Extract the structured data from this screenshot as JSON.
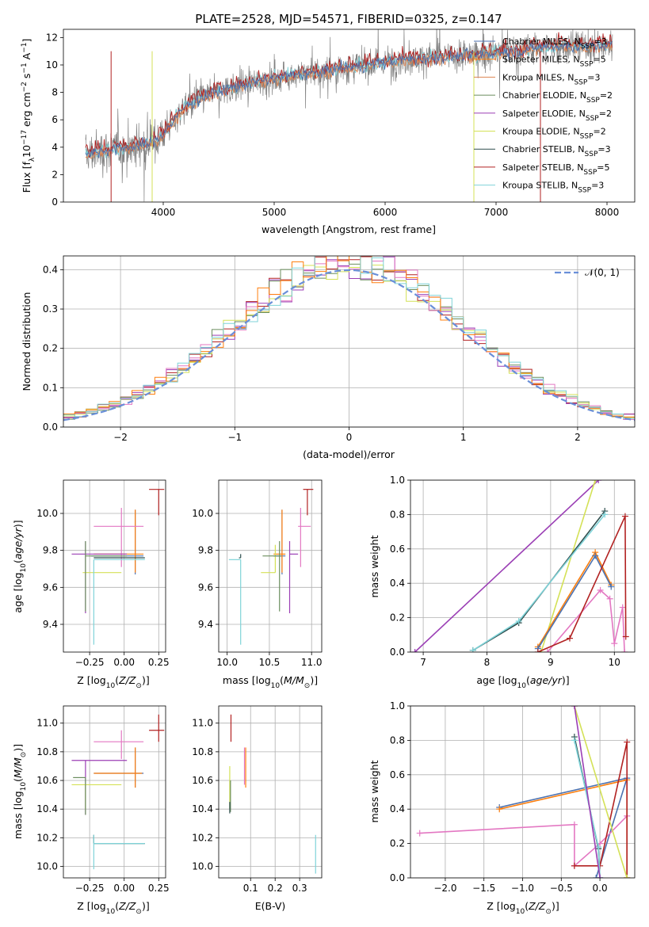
{
  "title": "PLATE=2528, MJD=54571, FIBERID=0325, z=0.147",
  "colors": {
    "Chabrier MILES": "#4c72b0",
    "Salpeter MILES": "#ff7f0e",
    "Kroupa MILES": "#dd8452",
    "Chabrier ELODIE": "#6b8e5e",
    "Salpeter ELODIE": "#9b3fb5",
    "Kroupa ELODIE": "#d4e157",
    "Chabrier STELIB": "#2f4f4f",
    "Salpeter STELIB": "#b22222",
    "Kroupa STELIB": "#7fd3d8",
    "normal": "#6a8fd8",
    "pink": "#e377c2",
    "data": "#808080"
  },
  "chart_data": [
    {
      "type": "line",
      "title": "PLATE=2528, MJD=54571, FIBERID=0325, z=0.147",
      "xlabel": "wavelength [Angstrom, rest frame]",
      "ylabel": "Flux [f_λ 10^-17 erg cm^-2 s^-1 A^-1]",
      "xlim": [
        3100,
        8250
      ],
      "ylim": [
        0,
        12.6
      ],
      "xticks": [
        4000,
        5000,
        6000,
        7000,
        8000
      ],
      "yticks": [
        0,
        2,
        4,
        6,
        8,
        10,
        12
      ],
      "legend": [
        {
          "label": "Chabrier MILES, N_SSP=3",
          "color": "#4c72b0"
        },
        {
          "label": "Salpeter MILES, N_SSP=5",
          "color": "#ff7f0e"
        },
        {
          "label": "Kroupa MILES, N_SSP=3",
          "color": "#dd8452"
        },
        {
          "label": "Chabrier ELODIE, N_SSP=2",
          "color": "#6b8e5e"
        },
        {
          "label": "Salpeter ELODIE, N_SSP=2",
          "color": "#9b3fb5"
        },
        {
          "label": "Kroupa ELODIE, N_SSP=2",
          "color": "#d4e157"
        },
        {
          "label": "Chabrier STELIB, N_SSP=3",
          "color": "#2f4f4f"
        },
        {
          "label": "Salpeter STELIB, N_SSP=5",
          "color": "#b22222"
        },
        {
          "label": "Kroupa STELIB, N_SSP=3",
          "color": "#7fd3d8"
        }
      ],
      "legend_position": "top-right",
      "continuum_nodes": {
        "x": [
          3300,
          3500,
          3700,
          3900,
          4000,
          4200,
          4400,
          4600,
          4800,
          5000,
          5200,
          5400,
          5600,
          5800,
          6000,
          6200,
          6400,
          6600,
          6800,
          7000,
          7200,
          7400,
          7600,
          7800,
          8050
        ],
        "y": [
          3.5,
          3.8,
          4.0,
          4.3,
          5.0,
          7.0,
          7.8,
          8.3,
          8.7,
          9.0,
          9.3,
          9.4,
          9.8,
          9.9,
          10.2,
          10.4,
          10.5,
          10.6,
          10.7,
          10.9,
          11.0,
          11.3,
          11.4,
          11.3,
          11.5
        ]
      }
    },
    {
      "type": "histogram",
      "xlabel": "(data-model)/error",
      "ylabel": "Normed distribution",
      "xlim": [
        -2.5,
        2.5
      ],
      "ylim": [
        0,
        0.435
      ],
      "xticks": [
        -2,
        -1,
        0,
        1,
        2
      ],
      "yticks": [
        0.0,
        0.1,
        0.2,
        0.3,
        0.4
      ],
      "legend": [
        {
          "label": "𝒩(0, 1)",
          "color": "#6a8fd8",
          "style": "dashed"
        }
      ],
      "legend_position": "top-right",
      "bin_width": 0.1,
      "reference_curve": "standard normal pdf"
    },
    {
      "type": "scatter",
      "xlabel": "Z [log10(Z/Z⊙)]",
      "ylabel": "age  [log10(age/yr)]",
      "xlim": [
        -0.44,
        0.3
      ],
      "ylim": [
        9.25,
        10.18
      ],
      "xticks": [
        -0.25,
        0.0,
        0.25
      ],
      "yticks": [
        9.4,
        9.6,
        9.8,
        10.0
      ],
      "points": [
        {
          "c": "#4c72b0",
          "x": 0.08,
          "y": 9.77,
          "xerr": [
            0.32,
            0.06
          ],
          "yerr": [
            0.1,
            0.25
          ]
        },
        {
          "c": "#ff7f0e",
          "x": 0.08,
          "y": 9.78,
          "xerr": [
            0.3,
            0.06
          ],
          "yerr": [
            0.1,
            0.24
          ]
        },
        {
          "c": "#b22222",
          "x": 0.25,
          "y": 10.13,
          "xerr": [
            0.07,
            0.04
          ],
          "yerr": [
            0.14,
            0.0
          ]
        },
        {
          "c": "#e377c2",
          "x": -0.02,
          "y": 9.93,
          "xerr": [
            0.2,
            0.16
          ],
          "yerr": [
            0.22,
            0.1
          ]
        },
        {
          "c": "#9b3fb5",
          "x": -0.28,
          "y": 9.78,
          "xerr": [
            0.1,
            0.3
          ],
          "yerr": [
            0.32,
            0.07
          ]
        },
        {
          "c": "#d4e157",
          "x": -0.02,
          "y": 9.68,
          "xerr": [
            0.28,
            0.0
          ],
          "yerr": [
            0.0,
            0.0
          ]
        },
        {
          "c": "#6b8e5e",
          "x": -0.28,
          "y": 9.77,
          "xerr": [
            0.0,
            0.3
          ],
          "yerr": [
            0.3,
            0.08
          ]
        },
        {
          "c": "#2f4f4f",
          "x": -0.22,
          "y": 9.76,
          "xerr": [
            0.0,
            0.37
          ],
          "yerr": [
            0.0,
            0.0
          ]
        },
        {
          "c": "#7fd3d8",
          "x": -0.22,
          "y": 9.75,
          "xerr": [
            0.0,
            0.37
          ],
          "yerr": [
            0.46,
            0.0
          ]
        }
      ]
    },
    {
      "type": "scatter",
      "xlabel": "mass [log10(M/M⊙)]",
      "ylabel": "",
      "xlim": [
        9.9,
        11.12
      ],
      "ylim": [
        9.25,
        10.18
      ],
      "xticks": [
        10.0,
        10.5,
        11.0
      ],
      "yticks": [
        9.4,
        9.6,
        9.8,
        10.0
      ],
      "points": [
        {
          "c": "#4c72b0",
          "x": 10.65,
          "y": 9.77,
          "xerr": [
            0.1,
            0.04
          ],
          "yerr": [
            0.1,
            0.25
          ]
        },
        {
          "c": "#ff7f0e",
          "x": 10.65,
          "y": 9.78,
          "xerr": [
            0.1,
            0.04
          ],
          "yerr": [
            0.1,
            0.24
          ]
        },
        {
          "c": "#b22222",
          "x": 10.95,
          "y": 10.13,
          "xerr": [
            0.05,
            0.07
          ],
          "yerr": [
            0.14,
            0.0
          ]
        },
        {
          "c": "#e377c2",
          "x": 10.87,
          "y": 9.93,
          "xerr": [
            0.03,
            0.12
          ],
          "yerr": [
            0.22,
            0.1
          ]
        },
        {
          "c": "#9b3fb5",
          "x": 10.74,
          "y": 9.78,
          "xerr": [
            0.0,
            0.1
          ],
          "yerr": [
            0.32,
            0.07
          ]
        },
        {
          "c": "#d4e157",
          "x": 10.57,
          "y": 9.68,
          "xerr": [
            0.17,
            0.0
          ],
          "yerr": [
            0.0,
            0.15
          ]
        },
        {
          "c": "#6b8e5e",
          "x": 10.62,
          "y": 9.77,
          "xerr": [
            0.2,
            0.02
          ],
          "yerr": [
            0.3,
            0.08
          ]
        },
        {
          "c": "#2f4f4f",
          "x": 10.16,
          "y": 9.76,
          "xerr": [
            0.02,
            0.0
          ],
          "yerr": [
            0.0,
            0.02
          ]
        },
        {
          "c": "#7fd3d8",
          "x": 10.16,
          "y": 9.75,
          "xerr": [
            0.14,
            0.0
          ],
          "yerr": [
            0.46,
            0.0
          ]
        }
      ]
    },
    {
      "type": "line",
      "xlabel": "age  [log10(age/yr)]",
      "ylabel": "mass weight",
      "xlim": [
        6.8,
        10.32
      ],
      "ylim": [
        0,
        1
      ],
      "xticks": [
        7,
        8,
        9,
        10
      ],
      "yticks": [
        0.0,
        0.2,
        0.4,
        0.6,
        0.8,
        1.0
      ],
      "series": [
        {
          "c": "#9b3fb5",
          "x": [
            6.87,
            9.75
          ],
          "y": [
            0.0,
            1.0
          ]
        },
        {
          "c": "#d4e157",
          "x": [
            8.85,
            9.7
          ],
          "y": [
            0.0,
            1.0
          ]
        },
        {
          "c": "#2f4f4f",
          "x": [
            7.78,
            8.5,
            9.85
          ],
          "y": [
            0.01,
            0.17,
            0.82
          ]
        },
        {
          "c": "#7fd3d8",
          "x": [
            7.78,
            8.5,
            9.85
          ],
          "y": [
            0.01,
            0.18,
            0.8
          ]
        },
        {
          "c": "#ff7f0e",
          "x": [
            8.8,
            9.7,
            9.95
          ],
          "y": [
            0.03,
            0.58,
            0.39
          ]
        },
        {
          "c": "#4c72b0",
          "x": [
            8.8,
            9.7,
            9.95
          ],
          "y": [
            0.02,
            0.56,
            0.38
          ]
        },
        {
          "c": "#e377c2",
          "x": [
            8.95,
            9.78,
            9.93,
            10.0,
            10.13,
            10.16
          ],
          "y": [
            0.0,
            0.36,
            0.31,
            0.05,
            0.26,
            0.0
          ]
        },
        {
          "c": "#b22222",
          "x": [
            8.8,
            9.3,
            10.17,
            10.18
          ],
          "y": [
            0.0,
            0.08,
            0.79,
            0.09
          ]
        }
      ]
    },
    {
      "type": "scatter",
      "xlabel": "Z [log10(Z/Z⊙)]",
      "ylabel": "mass [log10(M/M⊙)]",
      "xlim": [
        -0.44,
        0.3
      ],
      "ylim": [
        9.92,
        11.12
      ],
      "xticks": [
        -0.25,
        0.0,
        0.25
      ],
      "yticks": [
        10.0,
        10.2,
        10.4,
        10.6,
        10.8,
        11.0
      ],
      "points": [
        {
          "c": "#4c72b0",
          "x": 0.08,
          "y": 10.65,
          "xerr": [
            0.3,
            0.06
          ],
          "yerr": [
            0.1,
            0.18
          ]
        },
        {
          "c": "#ff7f0e",
          "x": 0.08,
          "y": 10.65,
          "xerr": [
            0.3,
            0.05
          ],
          "yerr": [
            0.1,
            0.18
          ]
        },
        {
          "c": "#b22222",
          "x": 0.25,
          "y": 10.95,
          "xerr": [
            0.07,
            0.04
          ],
          "yerr": [
            0.08,
            0.11
          ]
        },
        {
          "c": "#e377c2",
          "x": -0.02,
          "y": 10.87,
          "xerr": [
            0.2,
            0.16
          ],
          "yerr": [
            0.12,
            0.08
          ]
        },
        {
          "c": "#9b3fb5",
          "x": -0.28,
          "y": 10.74,
          "xerr": [
            0.1,
            0.3
          ],
          "yerr": [
            0.38,
            0.0
          ]
        },
        {
          "c": "#d4e157",
          "x": -0.28,
          "y": 10.57,
          "xerr": [
            0.1,
            0.26
          ],
          "yerr": [
            0.17,
            0.0
          ]
        },
        {
          "c": "#6b8e5e",
          "x": -0.28,
          "y": 10.62,
          "xerr": [
            0.09,
            0.0
          ],
          "yerr": [
            0.26,
            0.0
          ]
        },
        {
          "c": "#2f4f4f",
          "x": -0.22,
          "y": 10.16,
          "xerr": [
            0.0,
            0.37
          ],
          "yerr": [
            0.0,
            0.06
          ]
        },
        {
          "c": "#7fd3d8",
          "x": -0.22,
          "y": 10.16,
          "xerr": [
            0.0,
            0.37
          ],
          "yerr": [
            0.18,
            0.06
          ]
        }
      ]
    },
    {
      "type": "scatter",
      "xlabel": "E(B-V)",
      "ylabel": "",
      "xlim": [
        -0.03,
        0.39
      ],
      "ylim": [
        9.92,
        11.12
      ],
      "xticks": [
        0.1,
        0.2,
        0.3
      ],
      "yticks": [
        10.0,
        10.2,
        10.4,
        10.6,
        10.8,
        11.0
      ],
      "points": [
        {
          "c": "#b22222",
          "x": 0.02,
          "y": 10.95,
          "xerr": [
            0,
            0
          ],
          "yerr": [
            0.08,
            0.11
          ]
        },
        {
          "c": "#ff7f0e",
          "x": 0.08,
          "y": 10.65,
          "xerr": [
            0,
            0
          ],
          "yerr": [
            0.1,
            0.18
          ]
        },
        {
          "c": "#e377c2",
          "x": 0.075,
          "y": 10.65,
          "xerr": [
            0,
            0
          ],
          "yerr": [
            0.08,
            0.18
          ]
        },
        {
          "c": "#d4e157",
          "x": 0.015,
          "y": 10.55,
          "xerr": [
            0,
            0
          ],
          "yerr": [
            0.15,
            0.15
          ]
        },
        {
          "c": "#6b8e5e",
          "x": 0.018,
          "y": 10.5,
          "xerr": [
            0,
            0
          ],
          "yerr": [
            0.12,
            0.1
          ]
        },
        {
          "c": "#2f4f4f",
          "x": 0.015,
          "y": 10.45,
          "xerr": [
            0,
            0
          ],
          "yerr": [
            0.08,
            0.0
          ]
        },
        {
          "c": "#7fd3d8",
          "x": 0.365,
          "y": 10.08,
          "xerr": [
            0,
            0
          ],
          "yerr": [
            0.13,
            0.14
          ]
        }
      ]
    },
    {
      "type": "line",
      "xlabel": "Z [log10(Z/Z⊙)]",
      "ylabel": "mass weight",
      "xlim": [
        -2.45,
        0.45
      ],
      "ylim": [
        0,
        1
      ],
      "xticks": [
        -2.0,
        -1.5,
        -1.0,
        -0.5,
        0.0
      ],
      "yticks": [
        0.0,
        0.2,
        0.4,
        0.6,
        0.8,
        1.0
      ],
      "series": [
        {
          "c": "#4c72b0",
          "x": [
            -1.3,
            0.35,
            -0.05
          ],
          "y": [
            0.41,
            0.58,
            0.0
          ]
        },
        {
          "c": "#ff7f0e",
          "x": [
            -1.3,
            0.35,
            0.35
          ],
          "y": [
            0.4,
            0.57,
            0.0
          ]
        },
        {
          "c": "#e377c2",
          "x": [
            -2.33,
            -0.33,
            -0.33,
            0.0,
            0.35
          ],
          "y": [
            0.26,
            0.31,
            0.07,
            0.2,
            0.36
          ]
        },
        {
          "c": "#b22222",
          "x": [
            -0.33,
            0.0,
            0.35,
            0.35
          ],
          "y": [
            0.07,
            0.07,
            0.79,
            0.0
          ]
        },
        {
          "c": "#d4e157",
          "x": [
            -0.33,
            0.35
          ],
          "y": [
            1.0,
            0.0
          ]
        },
        {
          "c": "#2f4f4f",
          "x": [
            -0.33,
            -0.02,
            0.0
          ],
          "y": [
            0.82,
            0.17,
            0.0
          ]
        },
        {
          "c": "#7fd3d8",
          "x": [
            -0.33,
            -0.02,
            0.0
          ],
          "y": [
            0.8,
            0.18,
            0.0
          ]
        },
        {
          "c": "#9b3fb5",
          "x": [
            -0.33,
            0.0
          ],
          "y": [
            1.0,
            0.0
          ]
        }
      ]
    }
  ]
}
